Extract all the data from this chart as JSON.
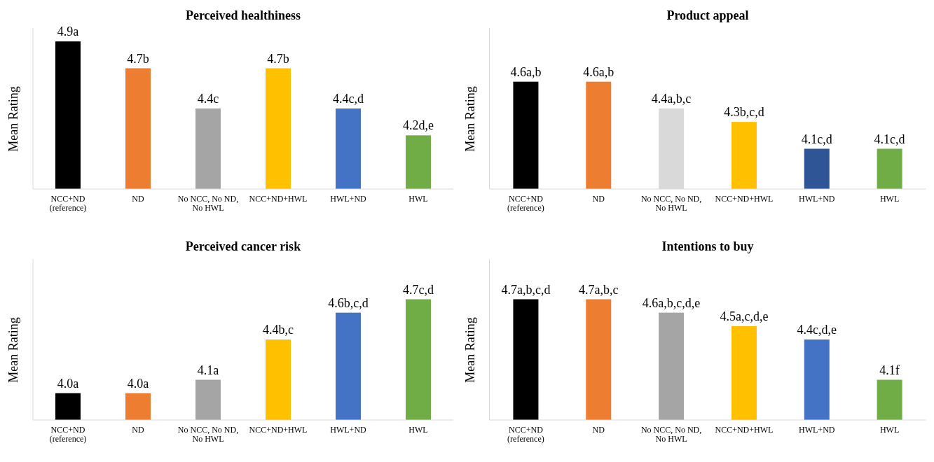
{
  "chart_data": [
    {
      "type": "bar",
      "title": "Perceived healthiness",
      "ylabel": "Mean Rating",
      "categories": [
        "NCC+ND (reference)",
        "ND",
        "No NCC, No ND, No HWL",
        "NCC+ND+HWL",
        "HWL+ND",
        "HWL"
      ],
      "values": [
        4.9,
        4.7,
        4.4,
        4.7,
        4.4,
        4.2
      ],
      "colors": [
        "#000000",
        "#ed7d31",
        "#a5a5a5",
        "#ffc000",
        "#4472c4",
        "#70ad47"
      ],
      "value_labels": [
        "4.9a",
        "4.7b",
        "4.4c",
        "4.7b",
        "4.4c,d",
        "4.2d,e"
      ],
      "ylim": [
        3.8,
        5.0
      ],
      "tick_labels": "x"
    },
    {
      "type": "bar",
      "title": "Product appeal",
      "ylabel": "Mean Rating",
      "categories": [
        "NCC+ND (reference)",
        "ND",
        "No NCC, No ND, No HWL",
        "NCC+ND+HWL",
        "HWL+ND",
        "HWL"
      ],
      "values": [
        4.6,
        4.6,
        4.4,
        4.3,
        4.1,
        4.1
      ],
      "colors": [
        "#000000",
        "#ed7d31",
        "#d9d9d9",
        "#ffc000",
        "#2f5597",
        "#70ad47"
      ],
      "value_labels": [
        "4.6a,b",
        "4.6a,b",
        "4.4a,b,c",
        "4.3b,c,d",
        "4.1c,d",
        "4.1c,d"
      ],
      "ylim": [
        3.8,
        5.0
      ],
      "tick_labels": "x"
    },
    {
      "type": "bar",
      "title": "Perceived cancer risk",
      "ylabel": "Mean Rating",
      "categories": [
        "NCC+ND (reference)",
        "ND",
        "No NCC, No ND, No HWL",
        "NCC+ND+HWL",
        "HWL+ND",
        "HWL"
      ],
      "values": [
        4.0,
        4.0,
        4.1,
        4.4,
        4.6,
        4.7
      ],
      "colors": [
        "#000000",
        "#ed7d31",
        "#a5a5a5",
        "#ffc000",
        "#4472c4",
        "#70ad47"
      ],
      "value_labels": [
        "4.0a",
        "4.0a",
        "4.1a",
        "4.4b,c",
        "4.6b,c,d",
        "4.7c,d"
      ],
      "ylim": [
        3.8,
        5.0
      ],
      "tick_labels": "x"
    },
    {
      "type": "bar",
      "title": "Intentions to buy",
      "ylabel": "Mean Rating",
      "categories": [
        "NCC+ND (reference)",
        "ND",
        "No NCC, No ND, No HWL",
        "NCC+ND+HWL",
        "HWL+ND",
        "HWL"
      ],
      "values": [
        4.7,
        4.7,
        4.6,
        4.5,
        4.4,
        4.1
      ],
      "colors": [
        "#000000",
        "#ed7d31",
        "#a5a5a5",
        "#ffc000",
        "#4472c4",
        "#70ad47"
      ],
      "value_labels": [
        "4.7a,b,c,d",
        "4.7a,b,c",
        "4.6a,b,c,d,e",
        "4.5a,c,d,e",
        "4.4c,d,e",
        "4.1f"
      ],
      "ylim": [
        3.8,
        5.0
      ],
      "tick_labels": "x"
    }
  ]
}
